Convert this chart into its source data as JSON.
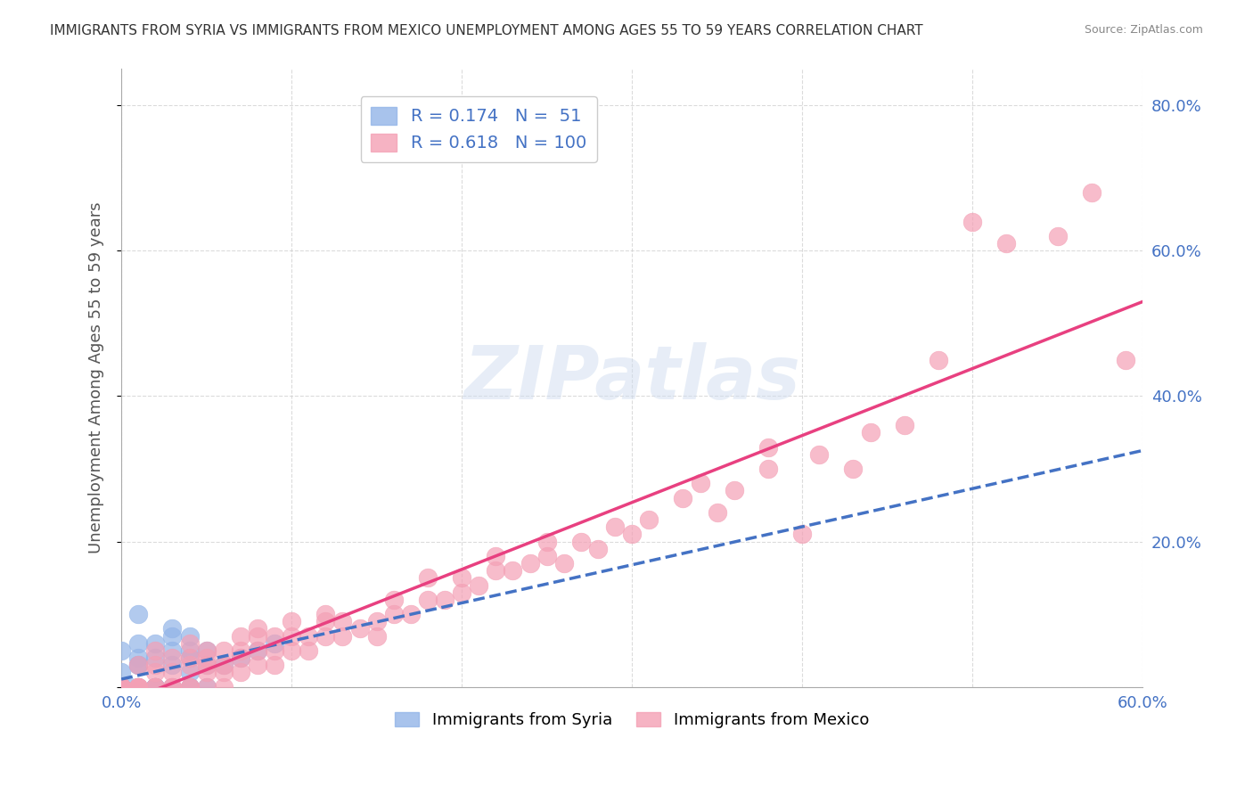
{
  "title": "IMMIGRANTS FROM SYRIA VS IMMIGRANTS FROM MEXICO UNEMPLOYMENT AMONG AGES 55 TO 59 YEARS CORRELATION CHART",
  "source": "Source: ZipAtlas.com",
  "ylabel": "Unemployment Among Ages 55 to 59 years",
  "xlabel": "",
  "xlim": [
    0.0,
    0.6
  ],
  "ylim": [
    0.0,
    0.85
  ],
  "xticks": [
    0.0,
    0.1,
    0.2,
    0.3,
    0.4,
    0.5,
    0.6
  ],
  "xticklabels": [
    "0.0%",
    "",
    "",
    "",
    "",
    "",
    "60.0%"
  ],
  "yticks": [
    0.0,
    0.2,
    0.4,
    0.6,
    0.8
  ],
  "yticklabels": [
    "",
    "20.0%",
    "40.0%",
    "60.0%",
    "80.0%"
  ],
  "syria_color": "#92b4e8",
  "mexico_color": "#f4a0b5",
  "syria_line_color": "#4472c4",
  "mexico_line_color": "#e84080",
  "syria_R": 0.174,
  "syria_N": 51,
  "mexico_R": 0.618,
  "mexico_N": 100,
  "watermark": "ZIPatlas",
  "legend_label_syria": "Immigrants from Syria",
  "legend_label_mexico": "Immigrants from Mexico",
  "syria_points_x": [
    0.0,
    0.0,
    0.0,
    0.0,
    0.0,
    0.0,
    0.0,
    0.0,
    0.0,
    0.0,
    0.0,
    0.0,
    0.0,
    0.0,
    0.0,
    0.0,
    0.0,
    0.0,
    0.005,
    0.01,
    0.01,
    0.01,
    0.01,
    0.01,
    0.01,
    0.02,
    0.02,
    0.02,
    0.02,
    0.02,
    0.02,
    0.02,
    0.02,
    0.03,
    0.03,
    0.03,
    0.03,
    0.03,
    0.04,
    0.04,
    0.04,
    0.04,
    0.04,
    0.04,
    0.05,
    0.05,
    0.05,
    0.06,
    0.07,
    0.08,
    0.09
  ],
  "syria_points_y": [
    0.0,
    0.0,
    0.0,
    0.0,
    0.0,
    0.0,
    0.0,
    0.0,
    0.02,
    0.0,
    0.05,
    0.0,
    0.0,
    0.0,
    0.0,
    0.0,
    0.0,
    0.0,
    0.0,
    0.03,
    0.04,
    0.06,
    0.1,
    0.03,
    0.0,
    0.04,
    0.06,
    0.0,
    0.0,
    0.0,
    0.0,
    0.0,
    0.0,
    0.05,
    0.07,
    0.08,
    0.03,
    0.0,
    0.04,
    0.07,
    0.05,
    0.02,
    0.0,
    0.0,
    0.03,
    0.05,
    0.0,
    0.03,
    0.04,
    0.05,
    0.06
  ],
  "mexico_points_x": [
    0.0,
    0.0,
    0.0,
    0.0,
    0.0,
    0.0,
    0.0,
    0.0,
    0.0,
    0.0,
    0.01,
    0.01,
    0.01,
    0.01,
    0.01,
    0.02,
    0.02,
    0.02,
    0.02,
    0.02,
    0.03,
    0.03,
    0.03,
    0.03,
    0.04,
    0.04,
    0.04,
    0.04,
    0.04,
    0.05,
    0.05,
    0.05,
    0.05,
    0.05,
    0.06,
    0.06,
    0.06,
    0.06,
    0.07,
    0.07,
    0.07,
    0.07,
    0.08,
    0.08,
    0.08,
    0.08,
    0.09,
    0.09,
    0.09,
    0.1,
    0.1,
    0.1,
    0.11,
    0.11,
    0.12,
    0.12,
    0.12,
    0.13,
    0.13,
    0.14,
    0.15,
    0.15,
    0.16,
    0.16,
    0.17,
    0.18,
    0.18,
    0.19,
    0.2,
    0.2,
    0.21,
    0.22,
    0.22,
    0.23,
    0.24,
    0.25,
    0.25,
    0.26,
    0.27,
    0.28,
    0.29,
    0.3,
    0.31,
    0.33,
    0.34,
    0.35,
    0.36,
    0.38,
    0.38,
    0.4,
    0.41,
    0.43,
    0.44,
    0.46,
    0.48,
    0.5,
    0.52,
    0.55,
    0.57,
    0.59
  ],
  "mexico_points_y": [
    0.0,
    0.0,
    0.0,
    0.0,
    0.0,
    0.0,
    0.0,
    0.0,
    0.0,
    0.0,
    0.0,
    0.0,
    0.0,
    0.0,
    0.03,
    0.0,
    0.0,
    0.02,
    0.03,
    0.05,
    0.0,
    0.0,
    0.02,
    0.04,
    0.0,
    0.0,
    0.03,
    0.04,
    0.06,
    0.0,
    0.02,
    0.03,
    0.04,
    0.05,
    0.0,
    0.02,
    0.03,
    0.05,
    0.02,
    0.04,
    0.05,
    0.07,
    0.03,
    0.05,
    0.07,
    0.08,
    0.03,
    0.05,
    0.07,
    0.05,
    0.07,
    0.09,
    0.05,
    0.07,
    0.07,
    0.09,
    0.1,
    0.07,
    0.09,
    0.08,
    0.07,
    0.09,
    0.1,
    0.12,
    0.1,
    0.12,
    0.15,
    0.12,
    0.13,
    0.15,
    0.14,
    0.16,
    0.18,
    0.16,
    0.17,
    0.18,
    0.2,
    0.17,
    0.2,
    0.19,
    0.22,
    0.21,
    0.23,
    0.26,
    0.28,
    0.24,
    0.27,
    0.3,
    0.33,
    0.21,
    0.32,
    0.3,
    0.35,
    0.36,
    0.45,
    0.64,
    0.61,
    0.62,
    0.68,
    0.45
  ]
}
